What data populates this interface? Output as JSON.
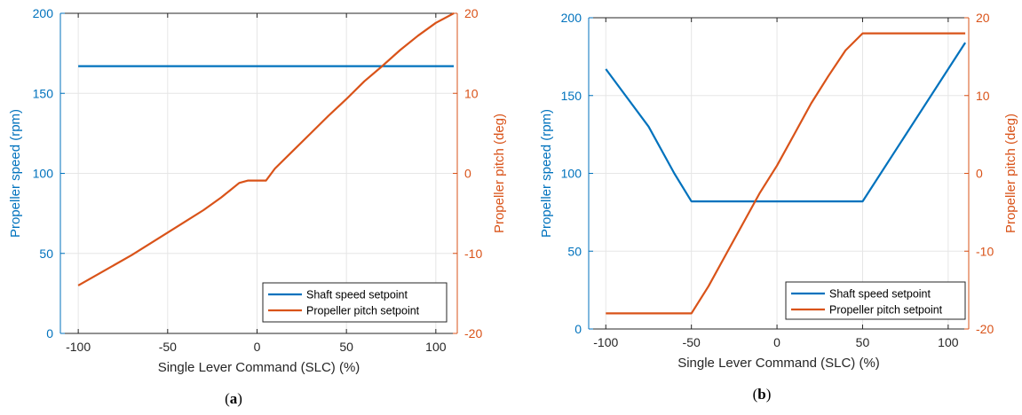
{
  "colors": {
    "shaft": "#0072BD",
    "pitch": "#D95319",
    "axis": "#262626",
    "grid": "#e6e6e6"
  },
  "chart_data": [
    {
      "type": "line",
      "panel_label": "(a)",
      "xlabel": "Single Lever Command (SLC) (%)",
      "ylabel_left": "Propeller speed (rpm)",
      "ylabel_right": "Propeller pitch (deg)",
      "xlim": [
        -110,
        112
      ],
      "ylim_left": [
        0,
        200
      ],
      "ylim_right": [
        -20,
        20
      ],
      "xticks": [
        -100,
        -50,
        0,
        50,
        100
      ],
      "yticks_left": [
        0,
        50,
        100,
        150,
        200
      ],
      "yticks_right": [
        -20,
        -10,
        0,
        10,
        20
      ],
      "grid": true,
      "legend_position": "bottom-right",
      "series": [
        {
          "name": "Shaft speed setpoint",
          "axis": "left",
          "x": [
            -100,
            110
          ],
          "y": [
            167,
            167
          ]
        },
        {
          "name": "Propeller pitch setpoint",
          "axis": "right",
          "x": [
            -100,
            -70,
            -50,
            -40,
            -30,
            -20,
            -15,
            -10,
            -5,
            0,
            5,
            10,
            20,
            30,
            40,
            50,
            60,
            70,
            80,
            90,
            100,
            110
          ],
          "y": [
            -14,
            -10.2,
            -7.4,
            -6.0,
            -4.6,
            -3.0,
            -2.1,
            -1.2,
            -0.9,
            -0.9,
            -0.9,
            0.6,
            2.8,
            5.0,
            7.2,
            9.3,
            11.5,
            13.4,
            15.4,
            17.2,
            18.8,
            20.0
          ]
        }
      ]
    },
    {
      "type": "line",
      "panel_label": "(b)",
      "xlabel": "Single Lever Command (SLC) (%)",
      "ylabel_left": "Propeller speed (rpm)",
      "ylabel_right": "Propeller pitch (deg)",
      "xlim": [
        -110,
        112
      ],
      "ylim_left": [
        0,
        200
      ],
      "ylim_right": [
        -20,
        20
      ],
      "xticks": [
        -100,
        -50,
        0,
        50,
        100
      ],
      "yticks_left": [
        0,
        50,
        100,
        150,
        200
      ],
      "yticks_right": [
        -20,
        -10,
        0,
        10,
        20
      ],
      "grid": true,
      "legend_position": "bottom-right",
      "series": [
        {
          "name": "Shaft speed setpoint",
          "axis": "left",
          "x": [
            -100,
            -75,
            -60,
            -50,
            50,
            110
          ],
          "y": [
            167,
            130,
            100,
            82,
            82,
            184
          ]
        },
        {
          "name": "Propeller pitch setpoint",
          "axis": "right",
          "x": [
            -100,
            -50,
            -40,
            -30,
            -20,
            -10,
            0,
            10,
            20,
            30,
            40,
            50,
            110
          ],
          "y": [
            -18,
            -18,
            -14.5,
            -10.5,
            -6.5,
            -2.5,
            1.0,
            5.0,
            9.0,
            12.5,
            15.8,
            18,
            18
          ]
        }
      ]
    }
  ]
}
